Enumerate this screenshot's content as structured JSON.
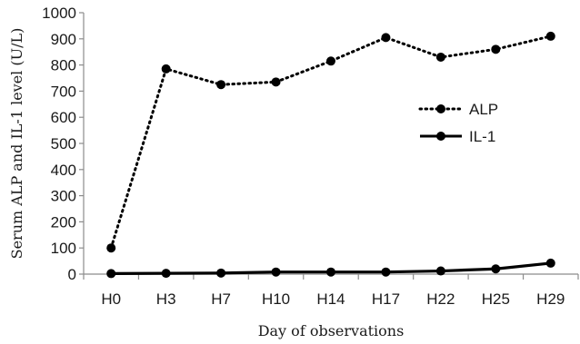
{
  "chart_data": {
    "type": "line",
    "categories": [
      "H0",
      "H3",
      "H7",
      "H10",
      "H14",
      "H17",
      "H22",
      "H25",
      "H29"
    ],
    "series": [
      {
        "name": "ALP",
        "style": "dotted",
        "values": [
          100,
          785,
          725,
          735,
          815,
          905,
          830,
          860,
          910
        ]
      },
      {
        "name": "IL-1",
        "style": "solid",
        "values": [
          2,
          3,
          4,
          8,
          8,
          8,
          12,
          20,
          42
        ]
      }
    ],
    "title": "",
    "xlabel": "Day of observations",
    "ylabel": "Serum ALP and IL-1 level (U/L)",
    "ylim": [
      0,
      1000
    ],
    "yticks": [
      0,
      100,
      200,
      300,
      400,
      500,
      600,
      700,
      800,
      900,
      1000
    ],
    "grid": false,
    "legend_position": "right",
    "colors": {
      "line": "#000000",
      "axis": "#8c8c8c",
      "text": "#1a1a1a"
    }
  }
}
